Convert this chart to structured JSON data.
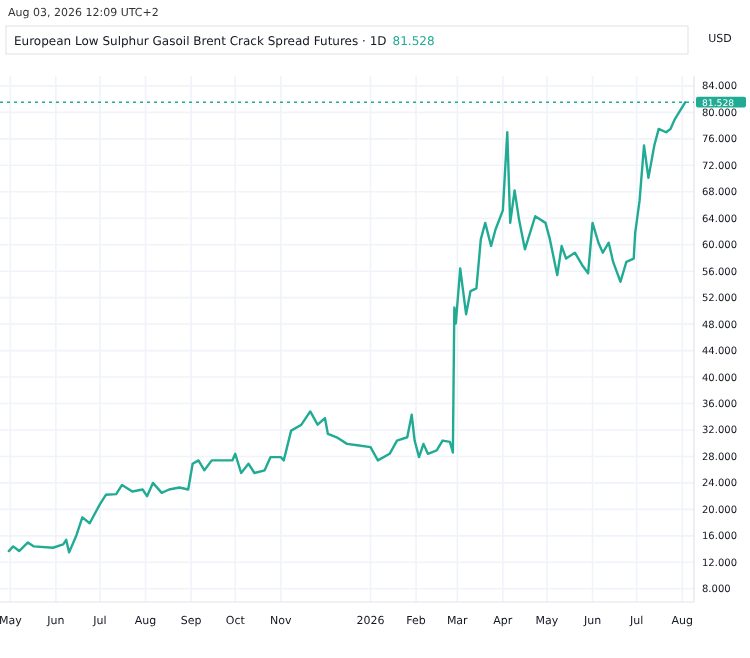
{
  "chart_data": {
    "type": "line",
    "title": "European Low Sulphur Gasoil Brent Crack Spread Futures · 1D",
    "ylabel": "USD",
    "annotations": [
      "Aug 03, 2026 12:09 UTC+2",
      "81.528"
    ],
    "x": [
      "2025-04-30",
      "2025-05-03",
      "2025-05-07",
      "2025-05-13",
      "2025-05-17",
      "2025-05-30",
      "2025-06-06",
      "2025-06-08",
      "2025-06-10",
      "2025-06-15",
      "2025-06-19",
      "2025-06-24",
      "2025-07-01",
      "2025-07-05",
      "2025-07-12",
      "2025-07-16",
      "2025-07-23",
      "2025-07-30",
      "2025-08-02",
      "2025-08-06",
      "2025-08-12",
      "2025-08-17",
      "2025-08-24",
      "2025-08-30",
      "2025-09-02",
      "2025-09-06",
      "2025-09-10",
      "2025-09-15",
      "2025-09-29",
      "2025-10-01",
      "2025-10-05",
      "2025-10-10",
      "2025-10-14",
      "2025-10-21",
      "2025-10-25",
      "2025-11-01",
      "2025-11-03",
      "2025-11-08",
      "2025-11-15",
      "2025-11-21",
      "2025-11-26",
      "2025-12-01",
      "2025-12-03",
      "2025-12-09",
      "2025-12-16",
      "2025-12-23",
      "2026-01-01",
      "2026-01-06",
      "2026-01-14",
      "2026-01-19",
      "2026-01-26",
      "2026-01-29",
      "2026-01-31",
      "2026-02-03",
      "2026-02-06",
      "2026-02-09",
      "2026-02-15",
      "2026-02-19",
      "2026-02-24",
      "2026-02-26",
      "2026-02-27",
      "2026-02-28",
      "2026-03-03",
      "2026-03-07",
      "2026-03-10",
      "2026-03-14",
      "2026-03-17",
      "2026-03-20",
      "2026-03-24",
      "2026-03-27",
      "2026-04-01",
      "2026-04-04",
      "2026-04-06",
      "2026-04-09",
      "2026-04-12",
      "2026-04-16",
      "2026-04-23",
      "2026-04-30",
      "2026-05-03",
      "2026-05-08",
      "2026-05-11",
      "2026-05-14",
      "2026-05-20",
      "2026-05-25",
      "2026-05-29",
      "2026-06-01",
      "2026-06-05",
      "2026-06-08",
      "2026-06-12",
      "2026-06-15",
      "2026-06-20",
      "2026-06-24",
      "2026-06-29",
      "2026-06-30",
      "2026-07-03",
      "2026-07-06",
      "2026-07-09",
      "2026-07-13",
      "2026-07-16",
      "2026-07-21",
      "2026-07-24",
      "2026-07-27",
      "2026-08-03"
    ],
    "series": [
      {
        "color": "#22ab94",
        "values": [
          13.7,
          14.4,
          13.7,
          15.0,
          14.4,
          14.2,
          14.7,
          15.4,
          13.5,
          16.1,
          18.8,
          17.9,
          20.8,
          22.2,
          22.3,
          23.7,
          22.7,
          23.0,
          22.0,
          24.0,
          22.5,
          23.0,
          23.3,
          23.0,
          26.9,
          27.4,
          25.9,
          27.4,
          27.4,
          28.4,
          25.5,
          26.9,
          25.5,
          25.9,
          27.9,
          27.9,
          27.4,
          31.9,
          32.8,
          34.8,
          32.8,
          33.8,
          31.4,
          30.9,
          29.9,
          29.7,
          29.4,
          27.4,
          28.4,
          30.4,
          30.9,
          34.3,
          30.4,
          27.9,
          29.9,
          28.4,
          28.9,
          30.4,
          30.2,
          28.6,
          50.5,
          48.1,
          56.4,
          49.5,
          53.0,
          53.4,
          60.8,
          63.3,
          59.8,
          62.3,
          65.2,
          77.0,
          63.3,
          68.2,
          63.8,
          59.3,
          64.3,
          63.3,
          60.8,
          55.4,
          59.8,
          57.9,
          58.8,
          56.9,
          55.7,
          63.3,
          60.3,
          58.8,
          60.3,
          57.4,
          54.4,
          57.4,
          57.9,
          61.8,
          66.7,
          75.0,
          70.1,
          75.0,
          77.5,
          77.0,
          77.5,
          79.0,
          81.528
        ]
      }
    ],
    "xlim": [
      "2025-04-24",
      "2026-08-09"
    ],
    "xticks": [
      {
        "value": "2025-05-01",
        "label": "May"
      },
      {
        "value": "2025-06-01",
        "label": "Jun"
      },
      {
        "value": "2025-07-01",
        "label": "Jul"
      },
      {
        "value": "2025-08-01",
        "label": "Aug"
      },
      {
        "value": "2025-09-01",
        "label": "Sep"
      },
      {
        "value": "2025-10-01",
        "label": "Oct"
      },
      {
        "value": "2025-11-01",
        "label": "Nov"
      },
      {
        "value": "2026-01-01",
        "label": "2026"
      },
      {
        "value": "2026-02-01",
        "label": "Feb"
      },
      {
        "value": "2026-03-01",
        "label": "Mar"
      },
      {
        "value": "2026-04-01",
        "label": "Apr"
      },
      {
        "value": "2026-05-01",
        "label": "May"
      },
      {
        "value": "2026-06-01",
        "label": "Jun"
      },
      {
        "value": "2026-07-01",
        "label": "Jul"
      },
      {
        "value": "2026-08-01",
        "label": "Aug"
      }
    ],
    "ylim": [
      6,
      85.5
    ],
    "yticks": [
      {
        "value": 8,
        "label": "8.000"
      },
      {
        "value": 12,
        "label": "12.000"
      },
      {
        "value": 16,
        "label": "16.000"
      },
      {
        "value": 20,
        "label": "20.000"
      },
      {
        "value": 24,
        "label": "24.000"
      },
      {
        "value": 28,
        "label": "28.000"
      },
      {
        "value": 32,
        "label": "32.000"
      },
      {
        "value": 36,
        "label": "36.000"
      },
      {
        "value": 40,
        "label": "40.000"
      },
      {
        "value": 44,
        "label": "44.000"
      },
      {
        "value": 48,
        "label": "48.000"
      },
      {
        "value": 52,
        "label": "52.000"
      },
      {
        "value": 56,
        "label": "56.000"
      },
      {
        "value": 60,
        "label": "60.000"
      },
      {
        "value": 64,
        "label": "64.000"
      },
      {
        "value": 68,
        "label": "68.000"
      },
      {
        "value": 72,
        "label": "72.000"
      },
      {
        "value": 76,
        "label": "76.000"
      },
      {
        "value": 80,
        "label": "80.000"
      },
      {
        "value": 84,
        "label": "84.000"
      }
    ],
    "ref_lines": [
      {
        "axis": "y",
        "value": 81.528,
        "label": "81.528",
        "color": "#22ab94",
        "line_style": "dotted"
      }
    ],
    "grid": true,
    "line_style": "solid"
  }
}
